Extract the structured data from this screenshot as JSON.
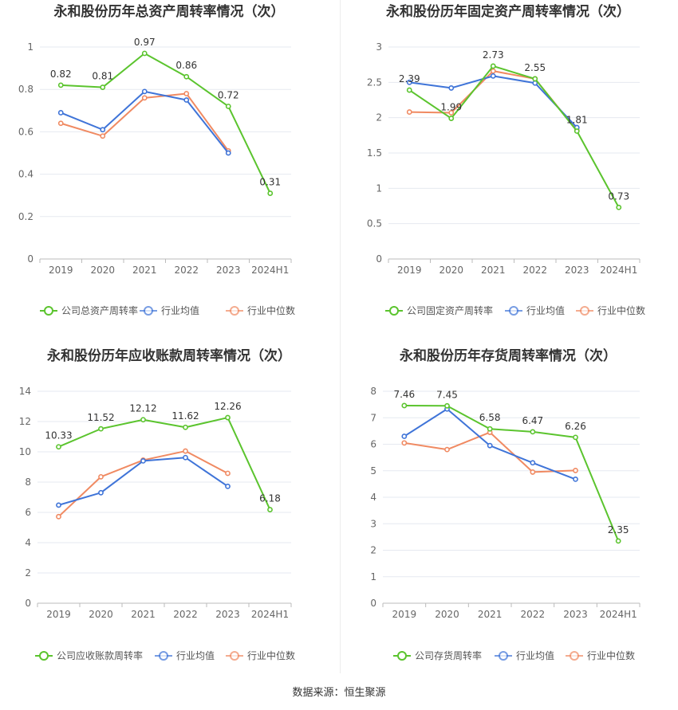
{
  "colors": {
    "company": "#5bc42e",
    "avg": "#3f74d8",
    "median": "#f08a62",
    "grid": "#e6e9f0",
    "axis": "#bbbbbb",
    "tick": "#666666",
    "label": "#333333"
  },
  "source_text": "数据来源：恒生聚源",
  "chart_data": [
    {
      "type": "line",
      "title": "永和股份历年总资产周转率情况（次）",
      "categories": [
        "2019",
        "2020",
        "2021",
        "2022",
        "2023",
        "2024H1"
      ],
      "ylim": [
        0,
        1
      ],
      "yticks": [
        "0",
        "0.2",
        "0.4",
        "0.6",
        "0.8",
        "1"
      ],
      "ytick_values": [
        0,
        0.2,
        0.4,
        0.6,
        0.8,
        1
      ],
      "grid": true,
      "legend_position": "bottom",
      "series": [
        {
          "name": "公司总资产周转率",
          "color": "#5bc42e",
          "values": [
            0.82,
            0.81,
            0.97,
            0.86,
            0.72,
            0.31
          ],
          "labels": [
            "0.82",
            "0.81",
            "0.97",
            "0.86",
            "0.72",
            "0.31"
          ]
        },
        {
          "name": "行业均值",
          "color": "#3f74d8",
          "values": [
            0.69,
            0.61,
            0.79,
            0.75,
            0.5,
            null
          ]
        },
        {
          "name": "行业中位数",
          "color": "#f08a62",
          "values": [
            0.64,
            0.58,
            0.76,
            0.78,
            0.51,
            null
          ]
        }
      ]
    },
    {
      "type": "line",
      "title": "永和股份历年固定资产周转率情况（次）",
      "categories": [
        "2019",
        "2020",
        "2021",
        "2022",
        "2023",
        "2024H1"
      ],
      "ylim": [
        0,
        3
      ],
      "yticks": [
        "0",
        "0.5",
        "1",
        "1.5",
        "2",
        "2.5",
        "3"
      ],
      "ytick_values": [
        0,
        0.5,
        1,
        1.5,
        2,
        2.5,
        3
      ],
      "grid": true,
      "legend_position": "bottom",
      "series": [
        {
          "name": "公司固定资产周转率",
          "color": "#5bc42e",
          "values": [
            2.39,
            1.99,
            2.73,
            2.55,
            1.81,
            0.73
          ],
          "labels": [
            "2.39",
            "1.99",
            "2.73",
            "2.55",
            "1.81",
            "0.73"
          ]
        },
        {
          "name": "行业均值",
          "color": "#3f74d8",
          "values": [
            2.5,
            2.42,
            2.59,
            2.49,
            1.86,
            null
          ]
        },
        {
          "name": "行业中位数",
          "color": "#f08a62",
          "values": [
            2.08,
            2.07,
            2.66,
            2.55,
            1.82,
            null
          ]
        }
      ]
    },
    {
      "type": "line",
      "title": "永和股份历年应收账款周转率情况（次）",
      "categories": [
        "2019",
        "2020",
        "2021",
        "2022",
        "2023",
        "2024H1"
      ],
      "ylim": [
        0,
        14
      ],
      "yticks": [
        "0",
        "2",
        "4",
        "6",
        "8",
        "10",
        "12",
        "14"
      ],
      "ytick_values": [
        0,
        2,
        4,
        6,
        8,
        10,
        12,
        14
      ],
      "grid": true,
      "legend_position": "bottom",
      "series": [
        {
          "name": "公司应收账款周转率",
          "color": "#5bc42e",
          "values": [
            10.33,
            11.52,
            12.12,
            11.62,
            12.26,
            6.18
          ],
          "labels": [
            "10.33",
            "11.52",
            "12.12",
            "11.62",
            "12.26",
            "6.18"
          ]
        },
        {
          "name": "行业均值",
          "color": "#3f74d8",
          "values": [
            6.48,
            7.3,
            9.4,
            9.62,
            7.72,
            null
          ]
        },
        {
          "name": "行业中位数",
          "color": "#f08a62",
          "values": [
            5.72,
            8.35,
            9.45,
            10.05,
            8.58,
            null
          ]
        }
      ]
    },
    {
      "type": "line",
      "title": "永和股份历年存货周转率情况（次）",
      "categories": [
        "2019",
        "2020",
        "2021",
        "2022",
        "2023",
        "2024H1"
      ],
      "ylim": [
        0,
        8
      ],
      "yticks": [
        "0",
        "1",
        "2",
        "3",
        "4",
        "5",
        "6",
        "7",
        "8"
      ],
      "ytick_values": [
        0,
        1,
        2,
        3,
        4,
        5,
        6,
        7,
        8
      ],
      "grid": true,
      "legend_position": "bottom",
      "series": [
        {
          "name": "公司存货周转率",
          "color": "#5bc42e",
          "values": [
            7.46,
            7.45,
            6.58,
            6.47,
            6.26,
            2.35
          ],
          "labels": [
            "7.46",
            "7.45",
            "6.58",
            "6.47",
            "6.26",
            "2.35"
          ]
        },
        {
          "name": "行业均值",
          "color": "#3f74d8",
          "values": [
            6.3,
            7.33,
            5.95,
            5.3,
            4.68,
            null
          ]
        },
        {
          "name": "行业中位数",
          "color": "#f08a62",
          "values": [
            6.05,
            5.8,
            6.45,
            4.95,
            5.01,
            null
          ]
        }
      ]
    }
  ]
}
